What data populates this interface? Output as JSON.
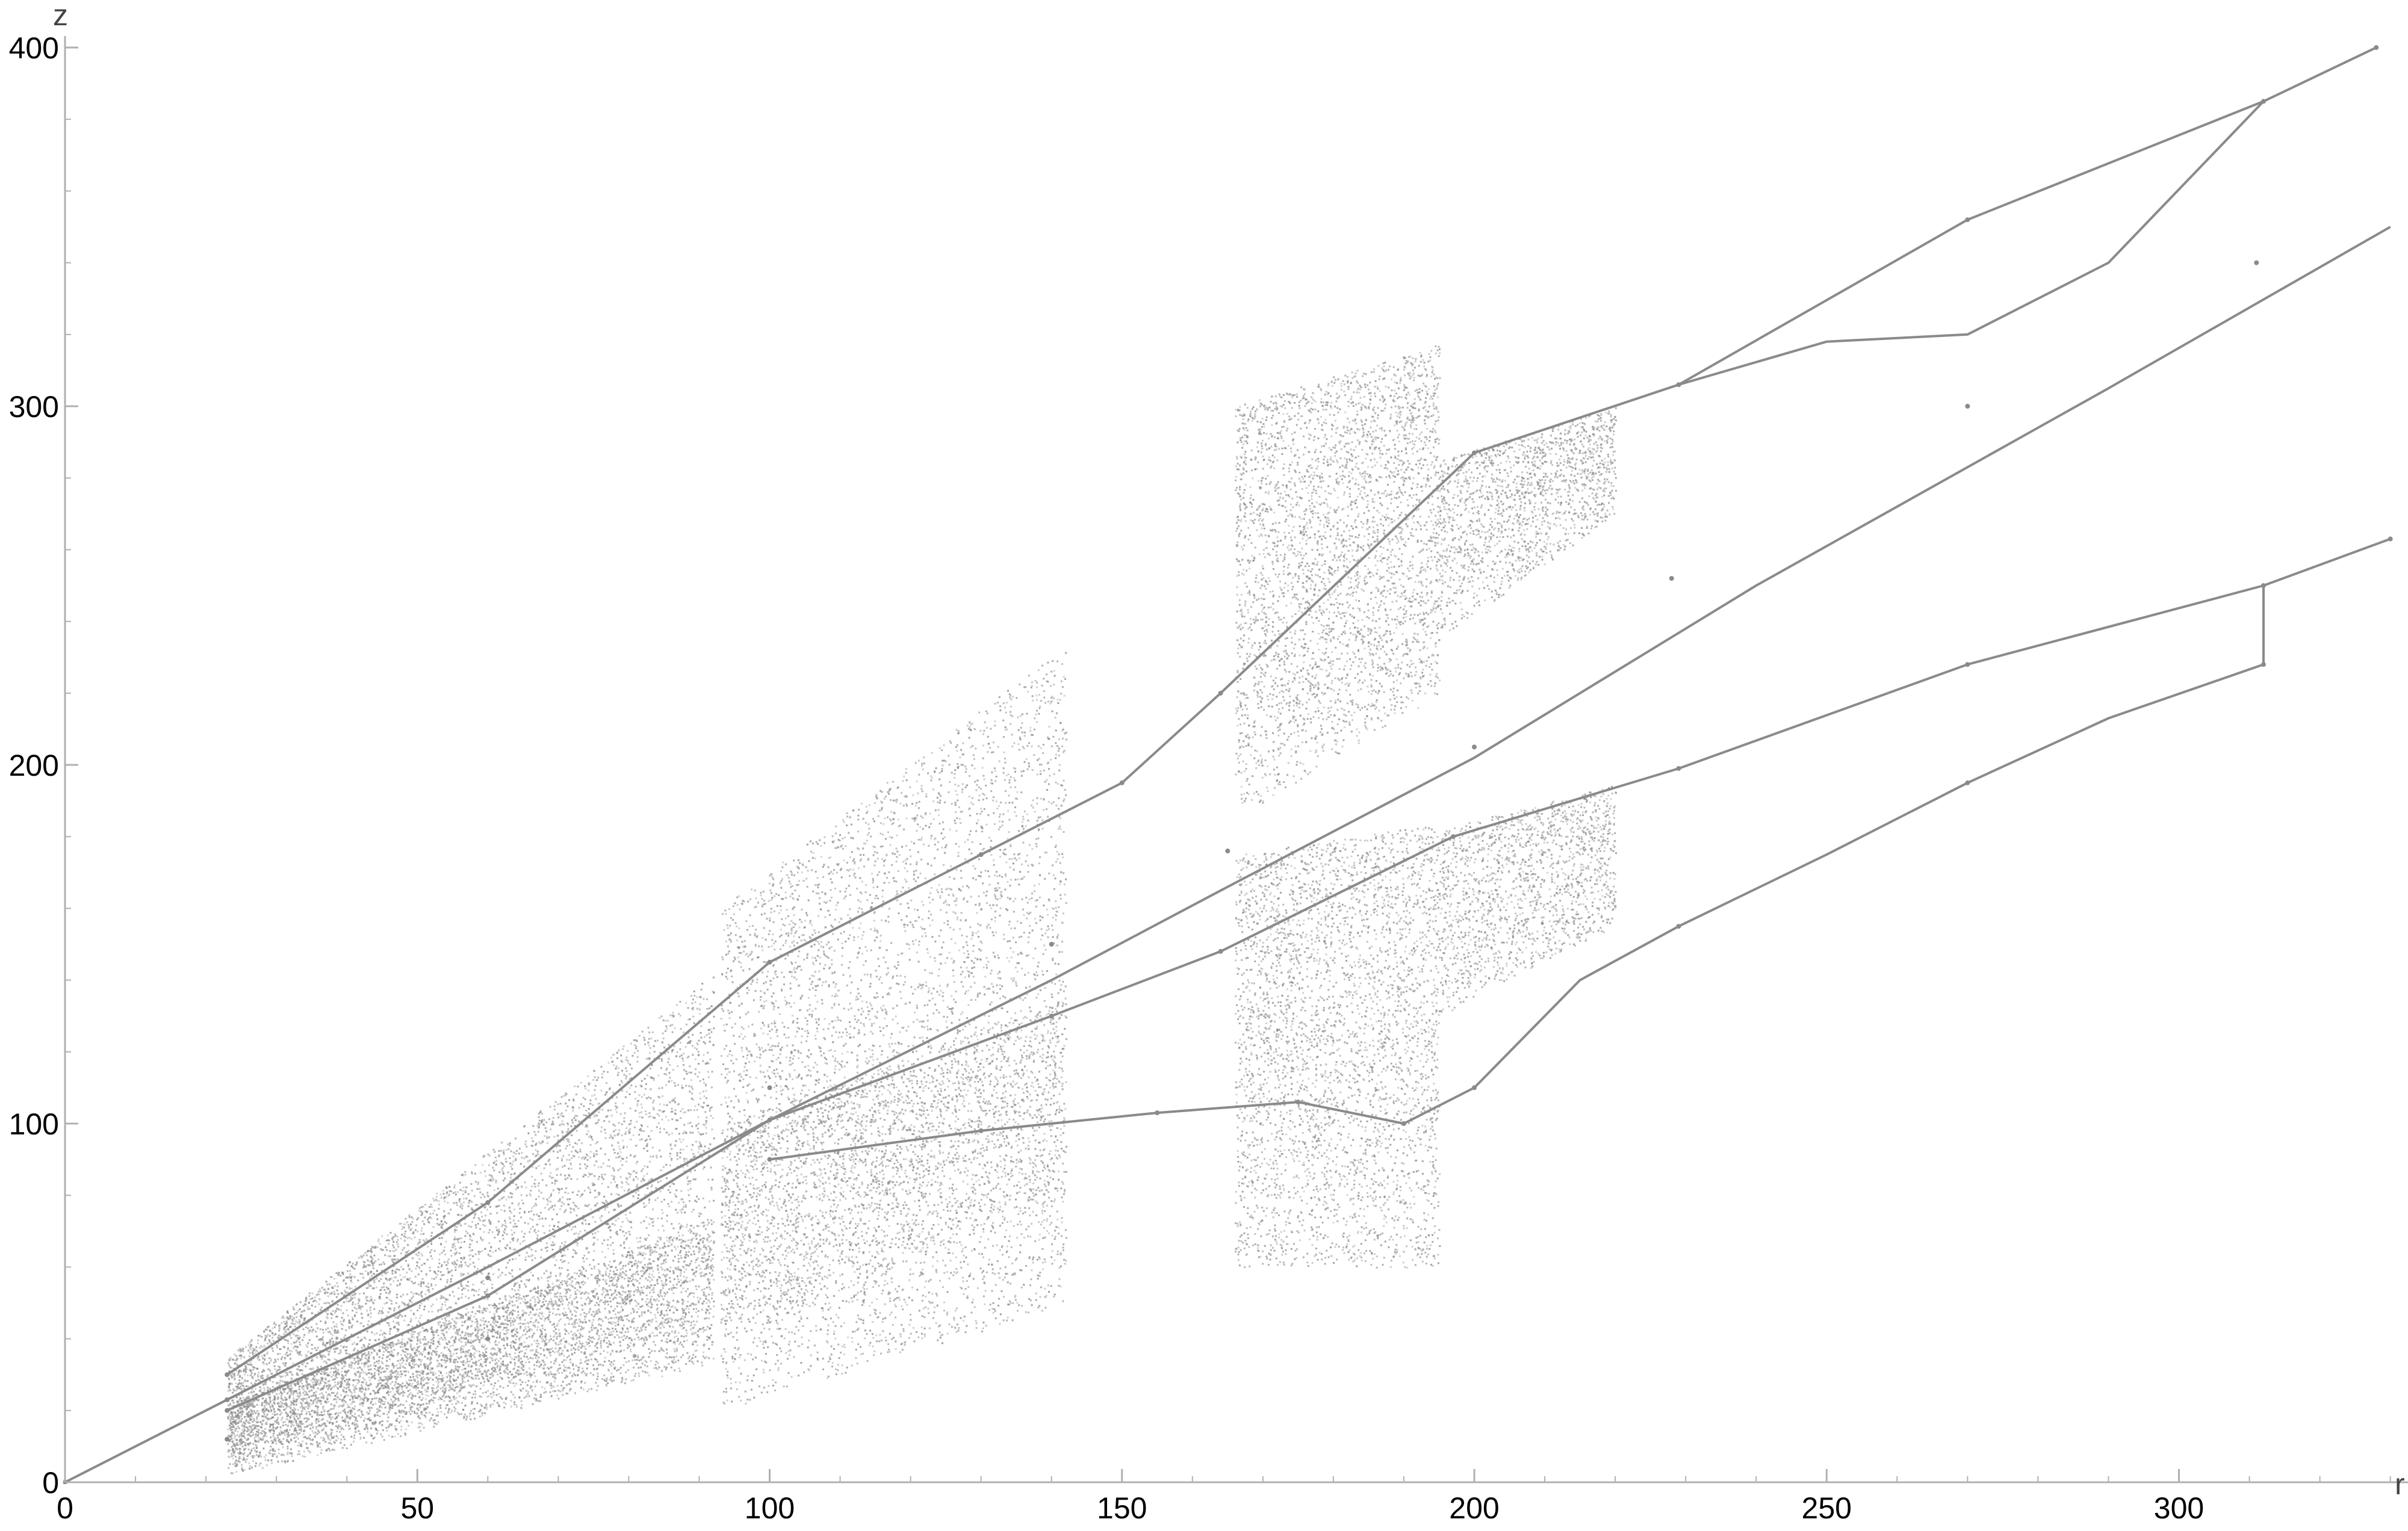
{
  "chart_data": {
    "type": "scatter",
    "description_free": true,
    "xlabel": "r",
    "ylabel": "z",
    "xlim": [
      0,
      330
    ],
    "ylim": [
      0,
      400
    ],
    "x_ticks": [
      0,
      50,
      100,
      150,
      200,
      250,
      300
    ],
    "y_ticks": [
      0,
      100,
      200,
      300,
      400
    ],
    "x_tick_labels": [
      "0",
      "50",
      "100",
      "150",
      "200",
      "250",
      "300"
    ],
    "y_tick_labels": [
      "0",
      "100",
      "200",
      "300",
      "400"
    ],
    "minor_tick_step": 10,
    "grid": false,
    "point_color": "#8a8a8a",
    "series": [
      {
        "values": [
          [
            0,
            0
          ],
          [
            23,
            23
          ],
          [
            60,
            78
          ],
          [
            100,
            145
          ],
          [
            130,
            175
          ],
          [
            150,
            195
          ],
          [
            164,
            220
          ],
          [
            200,
            287
          ],
          [
            229,
            306
          ],
          [
            270,
            352
          ],
          [
            312,
            385
          ],
          [
            328,
            400
          ],
          [
            23,
            30
          ],
          [
            60,
            57
          ],
          [
            100,
            110
          ],
          [
            140,
            150
          ],
          [
            165,
            176
          ],
          [
            200,
            205
          ],
          [
            228,
            252
          ],
          [
            270,
            300
          ],
          [
            311,
            340
          ],
          [
            23,
            20
          ],
          [
            60,
            52
          ],
          [
            100,
            101
          ],
          [
            140,
            130
          ],
          [
            164,
            148
          ],
          [
            197,
            180
          ],
          [
            229,
            199
          ],
          [
            270,
            228
          ],
          [
            312,
            250
          ],
          [
            330,
            263
          ],
          [
            23,
            12
          ],
          [
            60,
            40
          ],
          [
            100,
            90
          ],
          [
            130,
            98
          ],
          [
            155,
            103
          ],
          [
            175,
            106
          ],
          [
            190,
            100
          ],
          [
            200,
            110
          ],
          [
            229,
            155
          ],
          [
            270,
            195
          ],
          [
            312,
            228
          ]
        ]
      }
    ]
  }
}
